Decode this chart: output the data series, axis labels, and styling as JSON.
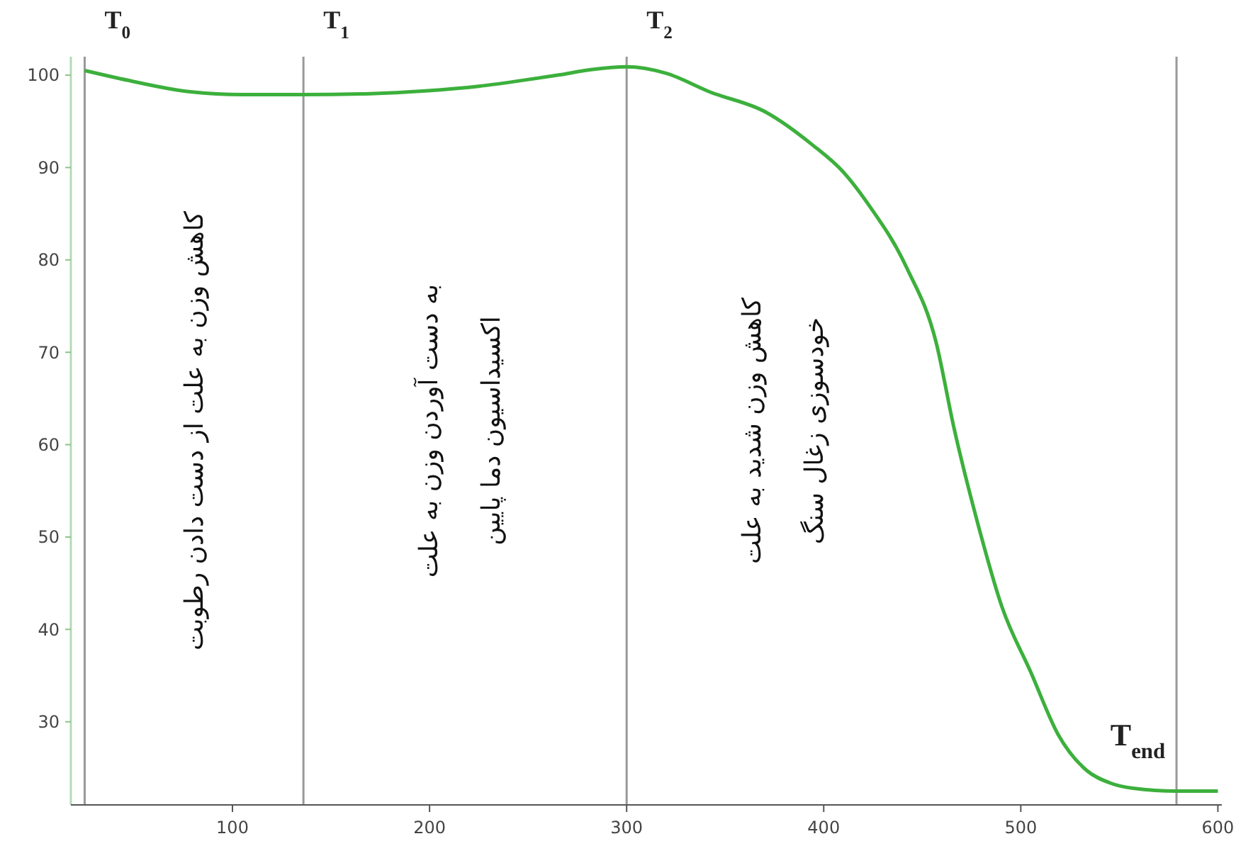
{
  "chart_data": {
    "type": "line",
    "x": [
      25,
      50,
      78.5,
      105,
      136,
      170,
      198,
      225,
      246,
      265,
      282,
      300,
      320,
      342,
      370.6,
      394,
      410,
      423,
      442,
      457,
      466,
      478,
      490.5,
      505,
      519,
      533.6,
      545,
      557,
      579,
      600
    ],
    "values": [
      100.5,
      99.3,
      98.2,
      97.9,
      97.9,
      98.0,
      98.3,
      98.8,
      99.4,
      100.0,
      100.6,
      100.9,
      100.2,
      98.2,
      96.0,
      92.5,
      89.5,
      85.9,
      79.2,
      71.1,
      61.9,
      51.6,
      42.4,
      35.4,
      28.6,
      24.7,
      23.4,
      22.8,
      22.5,
      22.5
    ],
    "color": "#3cb03c",
    "xlim": [
      18,
      602
    ],
    "ylim": [
      21,
      102
    ],
    "xticks": [
      100,
      200,
      300,
      400,
      500,
      600
    ],
    "yticks": [
      30,
      40,
      50,
      60,
      70,
      80,
      90,
      100
    ],
    "grid": false,
    "marker": "none",
    "line_style": "solid",
    "ref_lines": [
      {
        "axis": "x",
        "value": 25,
        "label": "T$_{0}$",
        "color": "#999999"
      },
      {
        "axis": "x",
        "value": 136,
        "label": "T$_{1}$",
        "color": "#999999"
      },
      {
        "axis": "x",
        "value": 300,
        "label": "T$_{2}$",
        "color": "#999999"
      },
      {
        "axis": "x",
        "value": 579,
        "label": "T$_{end}$",
        "color": "#999999"
      }
    ],
    "annotations": [
      "کاهش وزن به علت از دست دادن رطوبت",
      "به دست آوردن وزن به علت\nاکسیداسیون دما پایین",
      "کاهش وزن شدید به علت\nخودسوزی زغال سنگ"
    ]
  }
}
